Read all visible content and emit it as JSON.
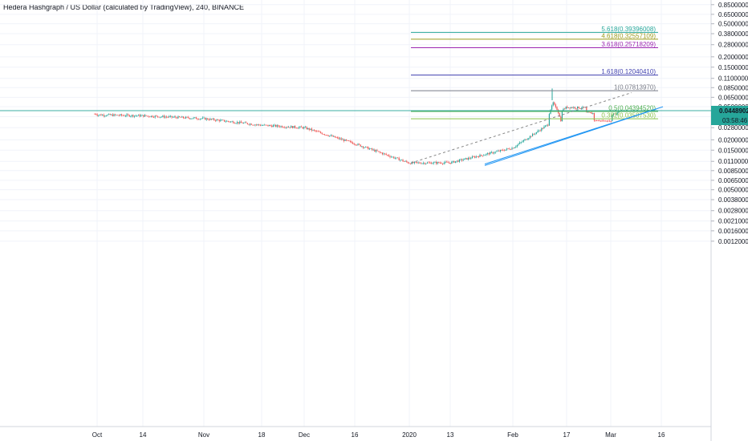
{
  "header": {
    "title": "Hedera Hashgraph / US Dollar (calculated by TradingView), 240, BINANCE"
  },
  "colors": {
    "up": "#26a69a",
    "down": "#ef5350",
    "grid": "#f0f3fa",
    "price_line": "#26a69a",
    "trend_channel": "#2196f3",
    "trend_dashed": "#888888"
  },
  "price_scale": {
    "labels": [
      "0.85000000",
      "0.65000000",
      "0.50000000",
      "0.38000000",
      "0.28000000",
      "0.20000000",
      "0.15000000",
      "0.11000000",
      "0.08500000",
      "0.06500000",
      "0.05000000",
      "0.03800000",
      "0.02800000",
      "0.02000000",
      "0.01500000",
      "0.01100000",
      "0.00850000",
      "0.00650000",
      "0.00500000",
      "0.00380000",
      "0.00280000",
      "0.00210000",
      "0.00160000",
      "0.00120000"
    ],
    "partial_label": "0",
    "current_price": "0.04489029",
    "countdown": "03:58:46"
  },
  "time_scale": {
    "labels": [
      "Oct",
      "14",
      "Nov",
      "18",
      "Dec",
      "16",
      "2020",
      "13",
      "Feb",
      "17",
      "Mar",
      "16"
    ]
  },
  "fib_levels": [
    {
      "label": "5.618(0.39396008)",
      "color": "#26a69a"
    },
    {
      "label": "4.618(0.32557109)",
      "color": "#9c9c1c"
    },
    {
      "label": "3.618(0.25718209)",
      "color": "#9c27b0"
    },
    {
      "label": "1.618(0.12040410)",
      "color": "#3f3fae"
    },
    {
      "label": "1(0.07813970)",
      "color": "#787b86"
    },
    {
      "label": "0.5(0.04394520)",
      "color": "#4caf50"
    },
    {
      "label": "0.382(0.03587530)",
      "color": "#8bc34a"
    }
  ],
  "chart_data": {
    "type": "candlestick",
    "title": "Hedera Hashgraph / US Dollar (calculated by TradingView), 240, BINANCE",
    "scale": "log",
    "ylim": [
      0.0011,
      0.95
    ],
    "x_labels": [
      "Oct",
      "14",
      "Nov",
      "18",
      "Dec",
      "16",
      "2020",
      "13",
      "Feb",
      "17",
      "Mar",
      "16"
    ],
    "close_path": [
      [
        "Oct",
        0.04
      ],
      [
        "14",
        0.039
      ],
      [
        "Nov",
        0.036
      ],
      [
        "18",
        0.03
      ],
      [
        "Dec",
        0.028
      ],
      [
        "16",
        0.018
      ],
      [
        "2020",
        0.0105
      ],
      [
        "13",
        0.0106
      ],
      [
        "Feb",
        0.016
      ],
      [
        "17",
        0.043
      ],
      [
        "Mar",
        0.041
      ]
    ],
    "peak": 0.083,
    "last_price": 0.04489029,
    "fibonacci_extension": [
      {
        "level": 0.382,
        "price": 0.0358753
      },
      {
        "level": 0.5,
        "price": 0.0439452
      },
      {
        "level": 1,
        "price": 0.0781397
      },
      {
        "level": 1.618,
        "price": 0.1204041
      },
      {
        "level": 3.618,
        "price": 0.25718209
      },
      {
        "level": 4.618,
        "price": 0.32557109
      },
      {
        "level": 5.618,
        "price": 0.39396008
      }
    ],
    "grid": true
  }
}
